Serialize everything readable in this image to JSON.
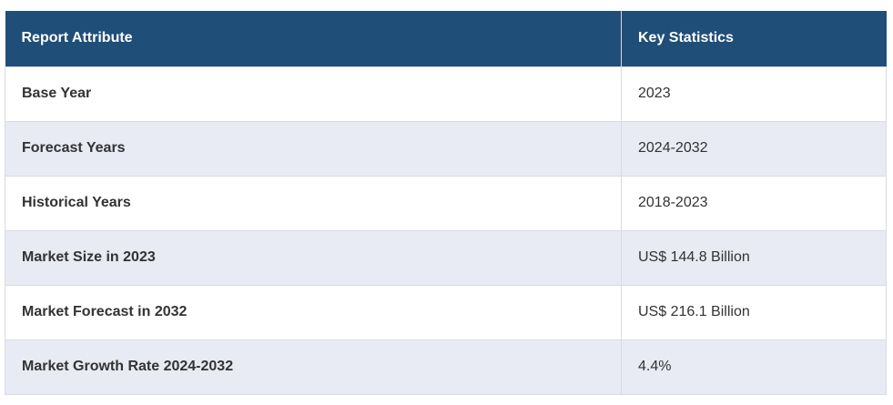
{
  "table": {
    "headers": [
      "Report Attribute",
      "Key Statistics"
    ],
    "rows": [
      {
        "attribute": "Base Year",
        "value": "2023"
      },
      {
        "attribute": "Forecast Years",
        "value": "2024-2032"
      },
      {
        "attribute": "Historical Years",
        "value": "2018-2023"
      },
      {
        "attribute": "Market Size in 2023",
        "value": "US$ 144.8 Billion"
      },
      {
        "attribute": "Market Forecast in 2032",
        "value": "US$ 216.1 Billion"
      },
      {
        "attribute": "Market Growth Rate 2024-2032",
        "value": "4.4%"
      }
    ]
  },
  "colors": {
    "header_bg": "#1f4e79",
    "header_text": "#ffffff",
    "row_alt_bg": "#e8eaf4",
    "row_bg": "#ffffff",
    "border": "#d9dbe3"
  }
}
